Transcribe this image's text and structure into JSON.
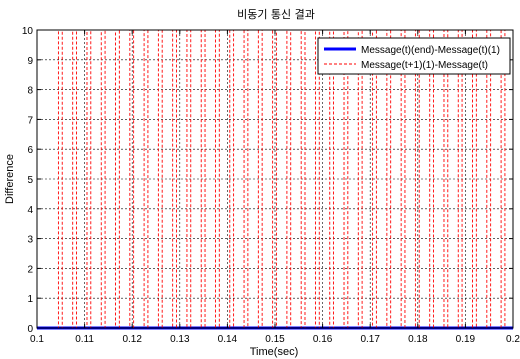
{
  "chart_data": {
    "type": "line",
    "title": "비동기 통신 결과",
    "xlabel": "Time(sec)",
    "ylabel": "Difference",
    "xlim": [
      0.1,
      0.2
    ],
    "ylim": [
      0,
      10
    ],
    "xticks": [
      "0.1",
      "0.11",
      "0.12",
      "0.13",
      "0.14",
      "0.15",
      "0.16",
      "0.17",
      "0.18",
      "0.19",
      "0.2"
    ],
    "yticks": [
      "0",
      "1",
      "2",
      "3",
      "4",
      "5",
      "6",
      "7",
      "8",
      "9",
      "10"
    ],
    "grid": true,
    "legend_position": "top-right",
    "series": [
      {
        "name": "Message(t)(end)-Message(t)(1)",
        "color": "#0000ff",
        "style": "solid",
        "x": [
          0.1,
          0.2
        ],
        "y": [
          0,
          0
        ]
      },
      {
        "name": "Message(t+1)(1)-Message(t)",
        "color": "#ff0000",
        "style": "dashed",
        "pulse_x": [
          0.1045,
          0.1075,
          0.1105,
          0.1135,
          0.1165,
          0.1195,
          0.1225,
          0.1255,
          0.1285,
          0.1315,
          0.1345,
          0.1375,
          0.1405,
          0.1435,
          0.1465,
          0.1495,
          0.1525,
          0.1555,
          0.1585,
          0.1615,
          0.1645,
          0.1675,
          0.1705,
          0.1735,
          0.1765,
          0.1795,
          0.1825,
          0.1855,
          0.1885,
          0.1915,
          0.1945,
          0.1975
        ],
        "pulse_width": 0.0008,
        "y_high": 10,
        "y_low": 0
      }
    ]
  }
}
